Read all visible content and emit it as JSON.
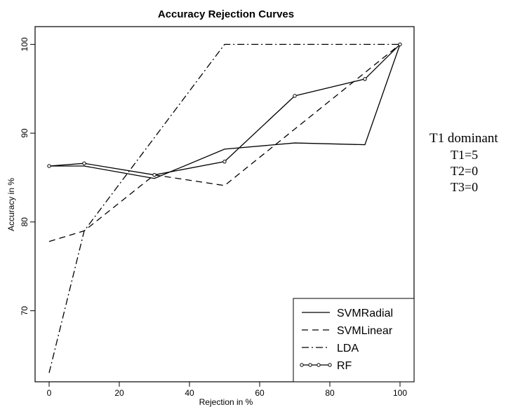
{
  "chart_data": {
    "type": "line",
    "title": "Accuracy Rejection Curves",
    "xlabel": "Rejection in %",
    "ylabel": "Accuracy in %",
    "xlim": [
      -4,
      104
    ],
    "ylim": [
      62,
      102
    ],
    "xticks": [
      0,
      20,
      40,
      60,
      80,
      100
    ],
    "yticks": [
      70,
      80,
      90,
      100
    ],
    "grid": false,
    "legend_position": "bottom-right",
    "series": [
      {
        "name": "SVMRadial",
        "style": "solid",
        "markers": false,
        "x": [
          0,
          10,
          30,
          50,
          70,
          90,
          100
        ],
        "y": [
          86.3,
          86.3,
          84.9,
          88.2,
          88.9,
          88.7,
          100
        ]
      },
      {
        "name": "SVMLinear",
        "style": "dashed",
        "markers": false,
        "x": [
          0,
          10,
          30,
          50,
          100
        ],
        "y": [
          77.8,
          79.0,
          85.3,
          84.1,
          100
        ]
      },
      {
        "name": "LDA",
        "style": "dashdot",
        "markers": false,
        "x": [
          0,
          10,
          50,
          70,
          100
        ],
        "y": [
          63.0,
          79.0,
          100,
          100,
          100
        ]
      },
      {
        "name": "RF",
        "style": "solid",
        "markers": true,
        "x": [
          0,
          10,
          30,
          50,
          70,
          90,
          100
        ],
        "y": [
          86.3,
          86.6,
          85.3,
          86.8,
          94.2,
          96.1,
          100
        ]
      }
    ]
  },
  "side_note": {
    "title": "T1 dominant",
    "lines": [
      "T1=5",
      "T2=0",
      "T3=0"
    ]
  }
}
